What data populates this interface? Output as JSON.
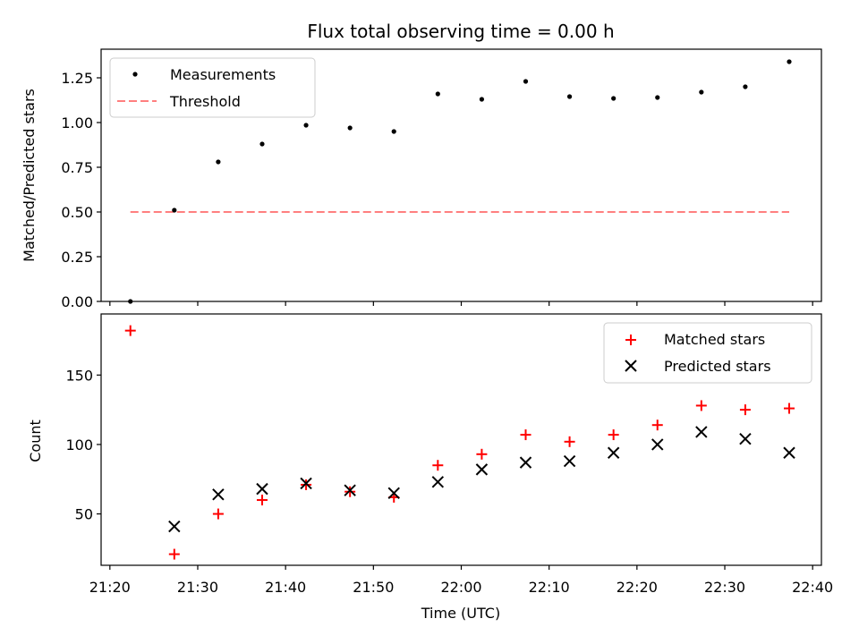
{
  "title": "Flux total observing time = 0.00 h",
  "chart_data": [
    {
      "type": "scatter",
      "panel": "top",
      "ylabel": "Matched/Predicted stars",
      "ylim": [
        0,
        1.41
      ],
      "yticks": [
        "0.00",
        "0.25",
        "0.50",
        "0.75",
        "1.00",
        "1.25"
      ],
      "legend_placement": "top-left",
      "x": [
        "21:22:20",
        "21:27:20",
        "21:32:20",
        "21:37:20",
        "21:42:20",
        "21:47:20",
        "21:52:20",
        "21:57:20",
        "22:02:20",
        "22:07:20",
        "22:12:20",
        "22:17:20",
        "22:22:20",
        "22:27:20",
        "22:32:20",
        "22:37:20"
      ],
      "series": [
        {
          "name": "Measurements",
          "marker": "dot",
          "color": "#000000",
          "values": [
            0.0,
            0.51,
            0.78,
            0.88,
            0.985,
            0.97,
            0.95,
            1.16,
            1.13,
            1.23,
            1.145,
            1.135,
            1.14,
            1.17,
            1.2,
            1.34
          ]
        },
        {
          "name": "Threshold",
          "marker": "dashed-line",
          "color": "#ff7f7f",
          "x": [
            "21:22:20",
            "22:37:20"
          ],
          "values": [
            0.5,
            0.5
          ]
        }
      ]
    },
    {
      "type": "scatter",
      "panel": "bottom",
      "ylabel": "Count",
      "xlabel": "Time (UTC)",
      "ylim": [
        13,
        194
      ],
      "yticks": [
        "50",
        "100",
        "150"
      ],
      "xticks": [
        "21:20",
        "21:30",
        "21:40",
        "21:50",
        "22:00",
        "22:10",
        "22:20",
        "22:30",
        "22:40"
      ],
      "xlim": [
        "21:19:00",
        "22:41:00"
      ],
      "legend_placement": "top-right",
      "x": [
        "21:22:20",
        "21:27:20",
        "21:32:20",
        "21:37:20",
        "21:42:20",
        "21:47:20",
        "21:52:20",
        "21:57:20",
        "22:02:20",
        "22:07:20",
        "22:12:20",
        "22:17:20",
        "22:22:20",
        "22:27:20",
        "22:32:20",
        "22:37:20"
      ],
      "series": [
        {
          "name": "Matched stars",
          "marker": "plus",
          "color": "#ff0000",
          "values": [
            182,
            21,
            50,
            60,
            71,
            66,
            62,
            85,
            93,
            107,
            102,
            107,
            114,
            128,
            125,
            126
          ]
        },
        {
          "name": "Predicted stars",
          "marker": "x",
          "color": "#000000",
          "values": [
            null,
            41,
            64,
            68,
            72,
            67,
            65,
            73,
            82,
            87,
            88,
            94,
            100,
            109,
            104,
            94
          ]
        }
      ]
    }
  ]
}
